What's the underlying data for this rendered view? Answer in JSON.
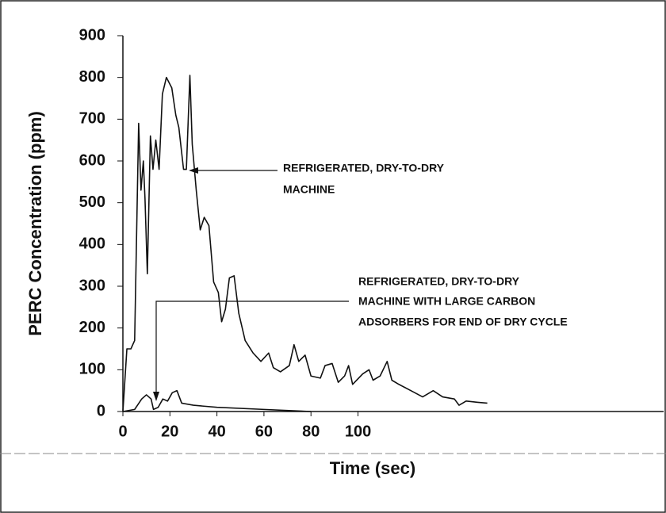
{
  "chart_data": {
    "type": "line",
    "x_label": "Time (sec)",
    "y_label": "PERC Concentration (ppm)",
    "xlim": [
      0,
      230
    ],
    "xticks": [
      0,
      20,
      40,
      60,
      80,
      100
    ],
    "ylim": [
      0,
      900
    ],
    "yticks": [
      0,
      100,
      200,
      300,
      400,
      500,
      600,
      700,
      800,
      900
    ],
    "series": [
      {
        "name": "REFRIGERATED, DRY-TO-DRY MACHINE",
        "color": "#111111",
        "x": [
          0,
          1.7,
          3.4,
          5,
          6.7,
          7.7,
          8.7,
          9.4,
          10.4,
          11.7,
          12.8,
          14,
          15.4,
          16.8,
          18.5,
          20.8,
          22.5,
          23.8,
          25.8,
          27,
          28.5,
          29.5,
          31.2,
          32.9,
          34.6,
          36.6,
          38.6,
          40.6,
          42,
          43.6,
          45.3,
          47.3,
          49.3,
          52,
          55.4,
          58.7,
          62,
          64,
          67,
          70.8,
          72.8,
          74.8,
          77.5,
          80,
          84,
          86,
          89,
          91.6,
          94.3,
          96,
          97.7,
          100.3,
          102,
          104.7,
          106.4,
          109.4,
          112.4,
          114.4,
          117.4,
          122.5,
          127.5,
          132,
          136,
          141,
          143,
          146,
          151,
          155
        ],
        "values": [
          0,
          150,
          150,
          170,
          690,
          530,
          600,
          510,
          330,
          660,
          580,
          650,
          580,
          760,
          800,
          775,
          710,
          680,
          580,
          580,
          805,
          640,
          530,
          435,
          465,
          445,
          310,
          285,
          215,
          245,
          320,
          325,
          235,
          170,
          140,
          120,
          140,
          105,
          95,
          110,
          160,
          120,
          135,
          85,
          80,
          110,
          115,
          70,
          85,
          110,
          65,
          80,
          90,
          100,
          75,
          85,
          120,
          75,
          65,
          50,
          35,
          50,
          35,
          30,
          15,
          25,
          22,
          20
        ]
      },
      {
        "name": "REFRIGERATED, DRY-TO-DRY MACHINE WITH LARGE CARBON ADSORBERS FOR END OF DRY CYCLE",
        "color": "#111111",
        "x": [
          0,
          5,
          8,
          10,
          12,
          13,
          15,
          17,
          19,
          21,
          23,
          25,
          30,
          40,
          60,
          80
        ],
        "values": [
          0,
          5,
          30,
          40,
          30,
          5,
          10,
          30,
          25,
          45,
          50,
          20,
          15,
          10,
          5,
          0
        ]
      }
    ],
    "annotations": [
      {
        "lines": [
          "REFRIGERATED, DRY-TO-DRY",
          "MACHINE"
        ]
      },
      {
        "lines": [
          "REFRIGERATED, DRY-TO-DRY",
          "MACHINE WITH LARGE CARBON",
          "ADSORBERS FOR END OF DRY CYCLE"
        ]
      }
    ]
  }
}
